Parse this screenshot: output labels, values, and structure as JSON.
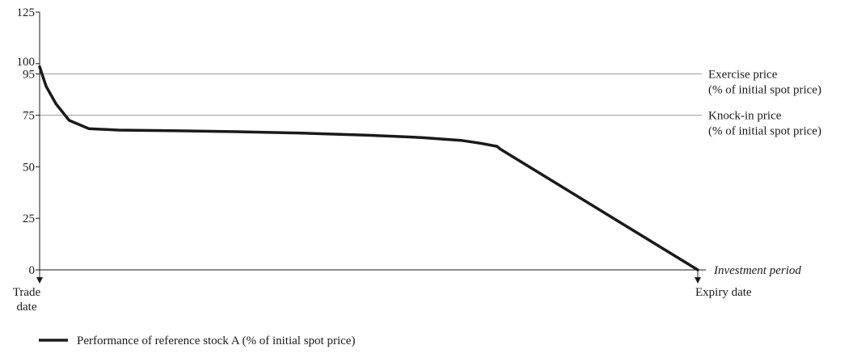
{
  "chart_data": {
    "type": "line",
    "ylim": [
      0,
      125
    ],
    "y_ticks": [
      "0",
      "25",
      "50",
      "75",
      "95",
      "100",
      "125"
    ],
    "x_ticks": [
      {
        "x": 0,
        "lines": [
          "Trade",
          "date"
        ]
      },
      {
        "x": 100,
        "lines": [
          "Expiry date"
        ]
      }
    ],
    "x_axis_label": "Investment period",
    "reference_lines": [
      {
        "y": 95,
        "lines": [
          "Exercise price",
          "(% of initial spot price)"
        ]
      },
      {
        "y": 75,
        "lines": [
          "Knock-in price",
          "(% of initial spot price)"
        ]
      }
    ],
    "series": [
      {
        "name": "Performance of reference stock A (% of initial spot price)",
        "color": "#1a1a1a",
        "x": [
          0,
          1,
          2.5,
          4.5,
          7.5,
          12,
          20,
          30,
          40,
          50,
          58,
          64,
          67,
          69.5,
          70,
          100
        ],
        "values": [
          98.5,
          89,
          80.5,
          72.5,
          68.5,
          67.8,
          67.5,
          67.0,
          66.3,
          65.3,
          64.2,
          62.8,
          61.4,
          59.9,
          58.6,
          0
        ]
      }
    ]
  }
}
